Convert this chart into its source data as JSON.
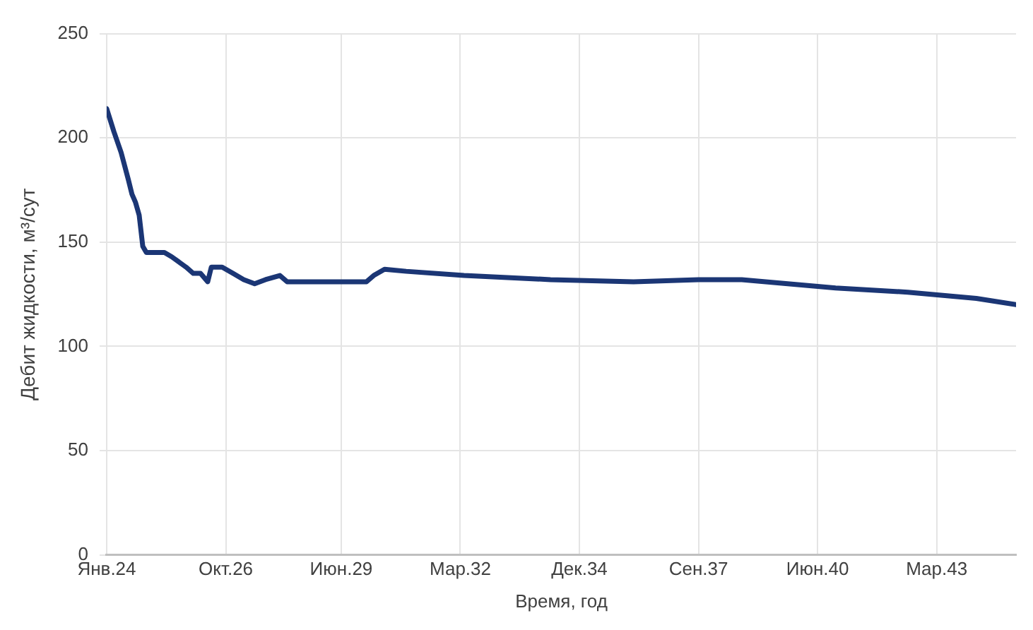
{
  "chart_data": {
    "type": "line",
    "xlabel": "Время, год",
    "ylabel": "Дебит жидкости, м³/сут",
    "x": [
      "2024-01",
      "2024-03",
      "2024-05",
      "2024-07",
      "2024-08",
      "2024-09",
      "2024-10",
      "2024-11",
      "2024-12",
      "2025-05",
      "2025-07",
      "2025-11",
      "2026-01",
      "2026-03",
      "2026-05",
      "2026-06",
      "2026-09",
      "2026-12",
      "2027-03",
      "2027-06",
      "2027-09",
      "2028-01",
      "2028-03",
      "2028-12",
      "2030-01",
      "2030-03",
      "2030-06",
      "2030-12",
      "2032-04",
      "2034-04",
      "2036-03",
      "2037-09",
      "2038-09",
      "2040-11",
      "2042-07",
      "2044-02",
      "2045-01"
    ],
    "series": [
      {
        "color": "#1b3675",
        "values": [
          214,
          203,
          193,
          180,
          173,
          169,
          163,
          148,
          145,
          145,
          143,
          138,
          135,
          135,
          131,
          138,
          138,
          135,
          132,
          130,
          132,
          134,
          131,
          131,
          131,
          134,
          137,
          136,
          134,
          132,
          131,
          132,
          132,
          128,
          126,
          123,
          120
        ]
      }
    ],
    "xlim": [
      "2024-01",
      "2045-01"
    ],
    "xticks": [
      {
        "value": "2024-01",
        "label": "Янв.24"
      },
      {
        "value": "2026-10",
        "label": "Окт.26"
      },
      {
        "value": "2029-06",
        "label": "Июн.29"
      },
      {
        "value": "2032-03",
        "label": "Мар.32"
      },
      {
        "value": "2034-12",
        "label": "Дек.34"
      },
      {
        "value": "2037-09",
        "label": "Сен.37"
      },
      {
        "value": "2040-06",
        "label": "Июн.40"
      },
      {
        "value": "2043-03",
        "label": "Мар.43"
      }
    ],
    "ylim": [
      0,
      250
    ],
    "yticks": [
      0,
      50,
      100,
      150,
      200,
      250
    ],
    "grid": true,
    "legend": false,
    "marker": "none",
    "line_style": "solid"
  }
}
